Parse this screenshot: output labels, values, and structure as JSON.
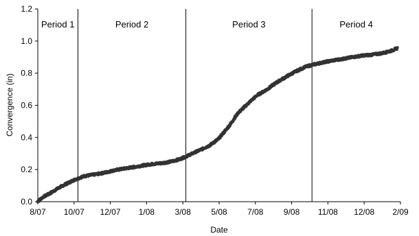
{
  "chart_data": {
    "type": "scatter",
    "title": "",
    "xlabel": "Date",
    "ylabel": "Convergence (in)",
    "x_ticks": [
      "8/07",
      "10/07",
      "12/07",
      "1/08",
      "3/08",
      "5/08",
      "7/08",
      "9/08",
      "11/08",
      "12/08",
      "2/09"
    ],
    "y_ticks": [
      "0.0",
      "0.2",
      "0.4",
      "0.6",
      "0.8",
      "1.0",
      "1.2"
    ],
    "ylim": [
      0,
      1.2
    ],
    "xlim": [
      "2007-08-01",
      "2009-03-01"
    ],
    "grid": false,
    "legend": "none",
    "marker_color": "#333333",
    "period_boundaries": [
      "2007-10-04",
      "2008-03-24",
      "2008-10-11"
    ],
    "periods": [
      {
        "label": "Period 1"
      },
      {
        "label": "Period 2"
      },
      {
        "label": "Period 3"
      },
      {
        "label": "Period 4"
      }
    ],
    "series": [
      {
        "x": [
          "2007-08-01",
          "2007-08-10",
          "2007-08-20",
          "2007-09-01",
          "2007-09-15",
          "2007-10-01",
          "2007-10-15",
          "2007-11-01",
          "2007-11-15",
          "2007-12-01",
          "2007-12-15",
          "2008-01-01",
          "2008-01-15",
          "2008-02-01",
          "2008-02-15",
          "2008-03-01",
          "2008-03-15",
          "2008-04-01",
          "2008-04-15",
          "2008-05-01",
          "2008-05-15",
          "2008-06-01",
          "2008-06-15",
          "2008-07-01",
          "2008-07-15",
          "2008-08-01",
          "2008-08-15",
          "2008-09-01",
          "2008-09-15",
          "2008-10-01",
          "2008-10-15",
          "2008-11-01",
          "2008-11-15",
          "2008-12-01",
          "2008-12-15",
          "2009-01-01",
          "2009-01-15",
          "2009-02-01",
          "2009-02-15",
          "2009-02-24"
        ],
        "y": [
          0.0,
          0.03,
          0.05,
          0.08,
          0.11,
          0.14,
          0.16,
          0.17,
          0.18,
          0.195,
          0.205,
          0.215,
          0.225,
          0.235,
          0.24,
          0.25,
          0.265,
          0.295,
          0.32,
          0.35,
          0.39,
          0.47,
          0.55,
          0.61,
          0.66,
          0.7,
          0.74,
          0.78,
          0.81,
          0.84,
          0.855,
          0.87,
          0.88,
          0.89,
          0.9,
          0.91,
          0.915,
          0.925,
          0.94,
          0.955
        ]
      }
    ]
  }
}
